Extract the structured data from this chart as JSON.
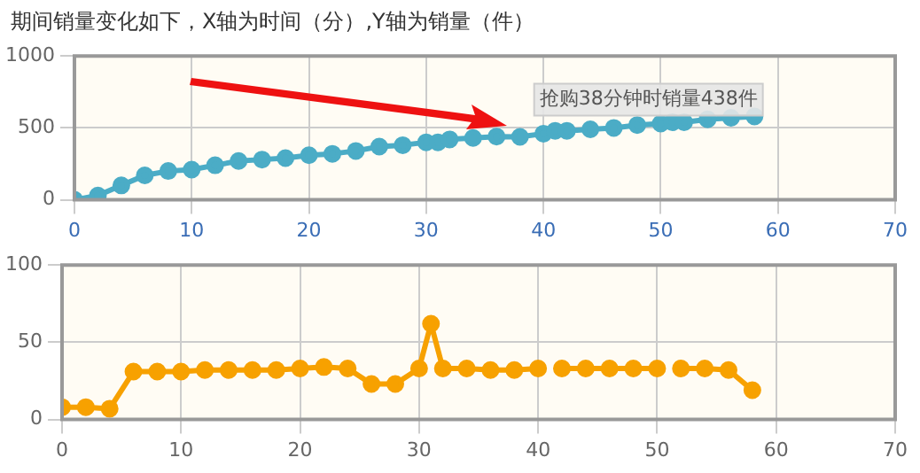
{
  "chart_data": [
    {
      "type": "line",
      "title": "期间销量变化如下，X轴为时间（分）,Y轴为销量（件）",
      "x": [
        0,
        2,
        4,
        6,
        8,
        10,
        12,
        14,
        16,
        18,
        20,
        22,
        24,
        26,
        28,
        30,
        31,
        32,
        34,
        36,
        38,
        40,
        41,
        42,
        44,
        46,
        48,
        50,
        51,
        52,
        54,
        56,
        58
      ],
      "values": [
        0,
        30,
        100,
        170,
        200,
        210,
        240,
        270,
        280,
        290,
        310,
        320,
        340,
        370,
        380,
        400,
        400,
        420,
        430,
        440,
        438,
        460,
        480,
        480,
        490,
        500,
        520,
        530,
        540,
        540,
        560,
        570,
        580
      ],
      "color": "#4bacc6",
      "xlim": [
        0,
        70
      ],
      "xticks": [
        0,
        10,
        20,
        30,
        40,
        50,
        60,
        70
      ],
      "ylim": [
        0,
        1000
      ],
      "yticks": [
        0,
        500,
        1000
      ],
      "grid": true,
      "marker": "circle",
      "annotations": [
        {
          "text": "抢购38分钟时销量438件",
          "x": 38,
          "y": 438
        }
      ]
    },
    {
      "type": "line",
      "x": [
        0,
        2,
        4,
        6,
        8,
        10,
        12,
        14,
        16,
        18,
        20,
        22,
        24,
        26,
        28,
        30,
        31,
        32,
        34,
        36,
        38,
        40,
        41,
        42,
        44,
        46,
        48,
        50,
        51,
        52,
        54,
        56,
        58
      ],
      "values": [
        8,
        8,
        7,
        31,
        31,
        31,
        32,
        32,
        32,
        32,
        33,
        34,
        33,
        23,
        23,
        33,
        62,
        33,
        33,
        32,
        32,
        33,
        null,
        33,
        33,
        33,
        33,
        33,
        null,
        33,
        33,
        32,
        19
      ],
      "color": "#f7a100",
      "xlim": [
        0,
        70
      ],
      "xticks": [
        0,
        10,
        20,
        30,
        40,
        50,
        60,
        70
      ],
      "ylim": [
        0,
        100
      ],
      "yticks": [
        0,
        50,
        100
      ],
      "grid": true,
      "marker": "circle"
    }
  ]
}
